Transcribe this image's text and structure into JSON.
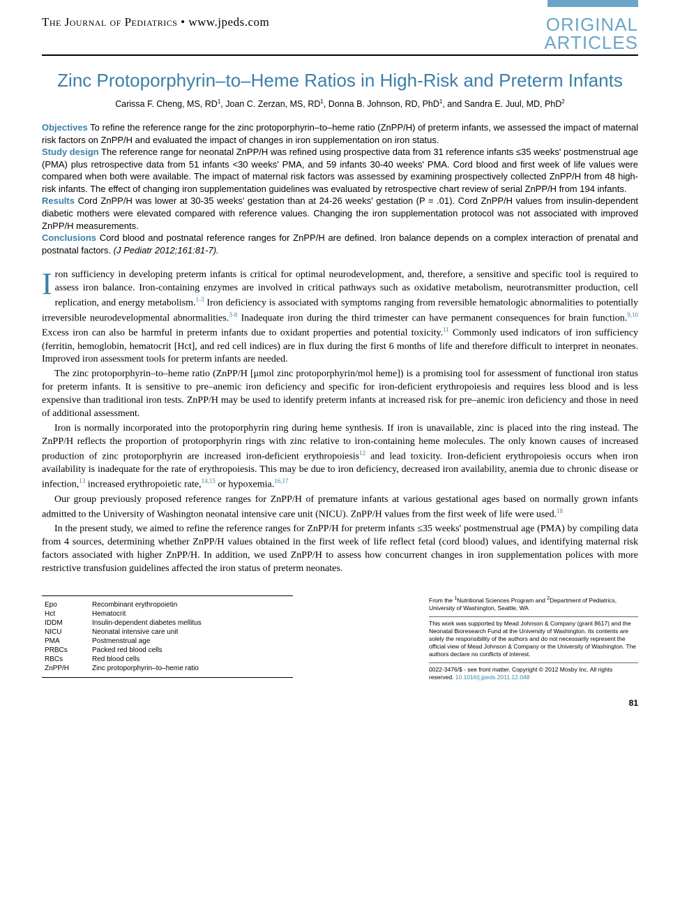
{
  "colors": {
    "accent": "#3b7fa8",
    "lightAccent": "#6ba5c8",
    "text": "#000000",
    "bg": "#ffffff"
  },
  "header": {
    "journal": "The Journal of Pediatrics",
    "bullet": "•",
    "url": "www.jpeds.com",
    "sectionLabel1": "ORIGINAL",
    "sectionLabel2": "ARTICLES"
  },
  "title": "Zinc Protoporphyrin–to–Heme Ratios in High-Risk and Preterm Infants",
  "authors": [
    {
      "name": "Carissa F. Cheng, MS, RD",
      "aff": "1"
    },
    {
      "name": "Joan C. Zerzan, MS, RD",
      "aff": "1"
    },
    {
      "name": "Donna B. Johnson, RD, PhD",
      "aff": "1"
    },
    {
      "name": "Sandra E. Juul, MD, PhD",
      "aff": "2"
    }
  ],
  "abstract": {
    "objectives": {
      "label": "Objectives",
      "text": "To refine the reference range for the zinc protoporphyrin–to–heme ratio (ZnPP/H) of preterm infants, we assessed the impact of maternal risk factors on ZnPP/H and evaluated the impact of changes in iron supplementation on iron status."
    },
    "studydesign": {
      "label": "Study design",
      "text": "The reference range for neonatal ZnPP/H was refined using prospective data from 31 reference infants ≤35 weeks' postmenstrual age (PMA) plus retrospective data from 51 infants <30 weeks' PMA, and 59 infants 30-40 weeks' PMA. Cord blood and first week of life values were compared when both were available. The impact of maternal risk factors was assessed by examining prospectively collected ZnPP/H from 48 high-risk infants. The effect of changing iron supplementation guidelines was evaluated by retrospective chart review of serial ZnPP/H from 194 infants."
    },
    "results": {
      "label": "Results",
      "text": "Cord ZnPP/H was lower at 30-35 weeks' gestation than at 24-26 weeks' gestation (P = .01). Cord ZnPP/H values from insulin-dependent diabetic mothers were elevated compared with reference values. Changing the iron supplementation protocol was not associated with improved ZnPP/H measurements."
    },
    "conclusions": {
      "label": "Conclusions",
      "text": "Cord blood and postnatal reference ranges for ZnPP/H are defined. Iron balance depends on a complex interaction of prenatal and postnatal factors."
    },
    "citation": "(J Pediatr 2012;161:81-7)."
  },
  "body": {
    "p1a": "ron sufficiency in developing preterm infants is critical for optimal neurodevelopment, and, therefore, a sensitive and specific tool is required to assess iron balance. Iron-containing enzymes are involved in critical pathways such as oxidative metabolism, neurotransmitter production, cell replication, and energy metabolism.",
    "p1b": " Iron deficiency is associated with symptoms ranging from reversible hematologic abnormalities to potentially irreversible neurodevelopmental abnormalities.",
    "p1c": " Inadequate iron during the third trimester can have permanent consequences for brain function.",
    "p1d": " Excess iron can also be harmful in preterm infants due to oxidant properties and potential toxicity.",
    "p1e": " Commonly used indicators of iron sufficiency (ferritin, hemoglobin, hematocrit [Hct], and red cell indices) are in flux during the first 6 months of life and therefore difficult to interpret in neonates. Improved iron assessment tools for preterm infants are needed.",
    "p2": "The zinc protoporphyrin–to–heme ratio (ZnPP/H [μmol zinc protoporphyrin/mol heme]) is a promising tool for assessment of functional iron status for preterm infants. It is sensitive to pre–anemic iron deficiency and specific for iron-deficient erythropoiesis and requires less blood and is less expensive than traditional iron tests. ZnPP/H may be used to identify preterm infants at increased risk for pre–anemic iron deficiency and those in need of additional assessment.",
    "p3a": "Iron is normally incorporated into the protoporphyrin ring during heme synthesis. If iron is unavailable, zinc is placed into the ring instead. The ZnPP/H reflects the proportion of protoporphyrin rings with zinc relative to iron-containing heme molecules. The only known causes of increased production of zinc protoporphyrin are increased iron-deficient erythropoiesis",
    "p3b": " and lead toxicity. Iron-deficient erythropoiesis occurs when iron availability is inadequate for the rate of erythropoiesis. This may be due to iron deficiency, decreased iron availability, anemia due to chronic disease or infection,",
    "p3c": " increased erythropoietic rate,",
    "p3d": " or hypoxemia.",
    "p4a": "Our group previously proposed reference ranges for ZnPP/H of premature infants at various gestational ages based on normally grown infants admitted to the University of Washington neonatal intensive care unit (NICU). ZnPP/H values from the first week of life were used.",
    "p5": "In the present study, we aimed to refine the reference ranges for ZnPP/H for preterm infants ≤35 weeks' postmenstrual age (PMA) by compiling data from 4 sources, determining whether ZnPP/H values obtained in the first week of life reflect fetal (cord blood) values, and identifying maternal risk factors associated with higher ZnPP/H. In addition, we used ZnPP/H to assess how concurrent changes in iron supplementation polices with more restrictive transfusion guidelines affected the iron status of preterm neonates.",
    "refs": {
      "r1": "1-3",
      "r2": "3-8",
      "r3": "9,10",
      "r4": "11",
      "r5": "12",
      "r6": "13",
      "r7": "14,15",
      "r8": "16,17",
      "r9": "18"
    }
  },
  "abbreviations": [
    {
      "k": "Epo",
      "v": "Recombinant erythropoietin"
    },
    {
      "k": "Hct",
      "v": "Hematocrit"
    },
    {
      "k": "IDDM",
      "v": "Insulin-dependent diabetes mellitus"
    },
    {
      "k": "NICU",
      "v": "Neonatal intensive care unit"
    },
    {
      "k": "PMA",
      "v": "Postmenstrual age"
    },
    {
      "k": "PRBCs",
      "v": "Packed red blood cells"
    },
    {
      "k": "RBCs",
      "v": "Red blood cells"
    },
    {
      "k": "ZnPP/H",
      "v": "Zinc protoporphyrin–to–heme ratio"
    }
  ],
  "meta": {
    "aff_prefix": "From the ",
    "aff1_sup": "1",
    "aff1": "Nutritional Sciences Program and ",
    "aff2_sup": "2",
    "aff2": "Department of Pediatrics, University of Washington, Seattle, WA",
    "funding": "This work was supported by Mead Johnson & Company (grant 8617) and the Neonatal Bioresearch Fund at the University of Washington. Its contents are solely the responsibility of the authors and do not necessarily represent the official view of Mead Johnson & Company or the University of Washington. The authors declare no conflicts of interest.",
    "copyright": "0022-3476/$ - see front matter. Copyright © 2012 Mosby Inc. All rights reserved. ",
    "doi": "10.1016/j.jpeds.2011.12.048"
  },
  "pageNumber": "81"
}
